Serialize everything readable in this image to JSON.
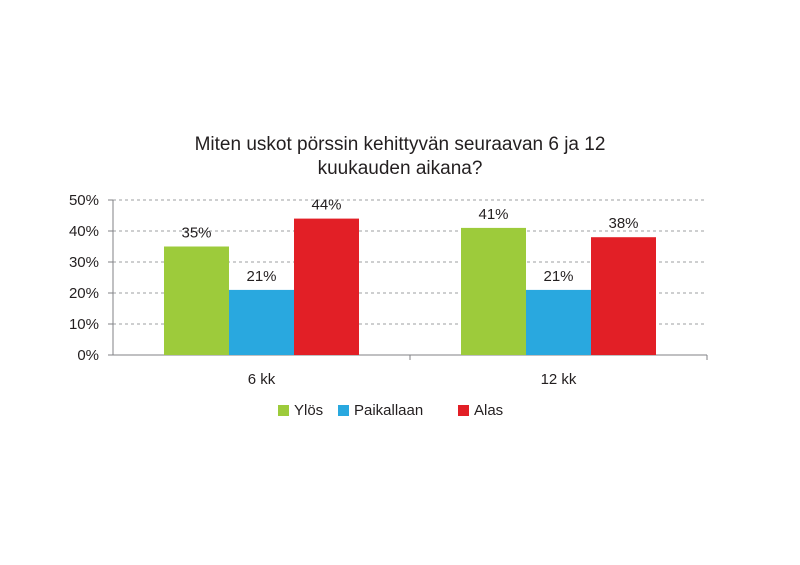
{
  "chart_data": {
    "type": "bar",
    "title_lines": [
      "Miten uskot pörssin kehittyvän seuraavan 6 ja 12",
      "kuukauden aikana?"
    ],
    "categories": [
      "6 kk",
      "12 kk"
    ],
    "series": [
      {
        "name": "Ylös",
        "values": [
          35,
          41
        ],
        "labels": [
          "35%",
          "41%"
        ],
        "color": "#9dcb3b"
      },
      {
        "name": "Paikallaan",
        "values": [
          21,
          21
        ],
        "labels": [
          "21%",
          "21%"
        ],
        "color": "#29a8df"
      },
      {
        "name": "Alas",
        "values": [
          44,
          38
        ],
        "labels": [
          "44%",
          "38%"
        ],
        "color": "#e21f26"
      }
    ],
    "y_ticks": [
      "0%",
      "10%",
      "20%",
      "30%",
      "40%",
      "50%"
    ],
    "ylim": [
      0,
      50
    ],
    "grid": true,
    "legend_position": "bottom"
  }
}
